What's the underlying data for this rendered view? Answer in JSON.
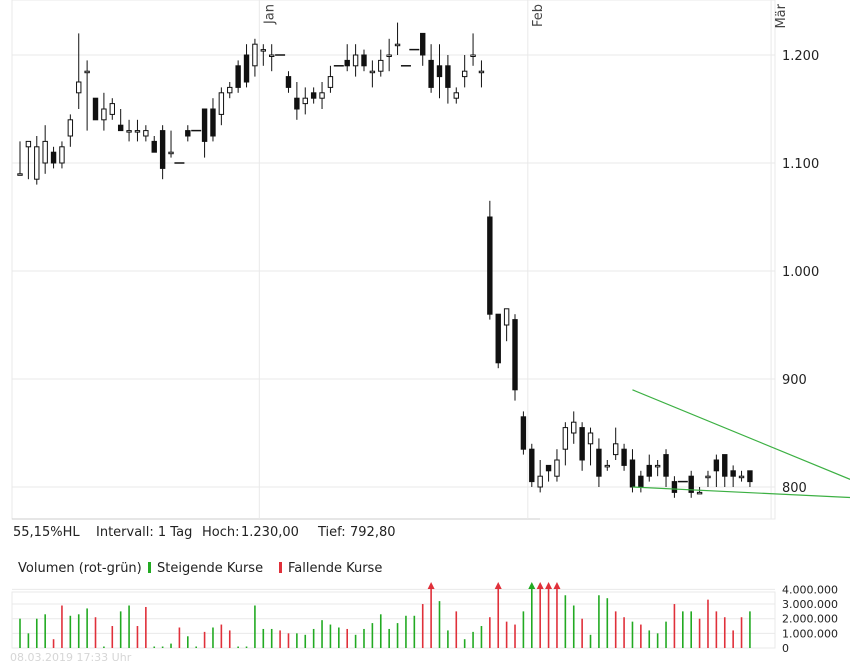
{
  "chart_data": [
    {
      "type": "candlestick",
      "x_labels": [
        {
          "label": "Jan",
          "index": 29
        },
        {
          "label": "Feb",
          "index": 61
        },
        {
          "label": "Mär",
          "index": 90
        }
      ],
      "y_ticks": [
        {
          "value": 800,
          "label": "800"
        },
        {
          "value": 900,
          "label": "900"
        },
        {
          "value": 1000,
          "label": "1.000"
        },
        {
          "value": 1100,
          "label": "1.100"
        },
        {
          "value": 1200,
          "label": "1.200"
        }
      ],
      "ylim": [
        780,
        1265
      ],
      "candles": [
        [
          1090,
          1090,
          1120,
          1090
        ],
        [
          1115,
          1120,
          1120,
          1085
        ],
        [
          1085,
          1115,
          1125,
          1080
        ],
        [
          1100,
          1120,
          1135,
          1090
        ],
        [
          1110,
          1100,
          1115,
          1095
        ],
        [
          1100,
          1115,
          1120,
          1095
        ],
        [
          1125,
          1140,
          1145,
          1115
        ],
        [
          1165,
          1175,
          1220,
          1150
        ],
        [
          1185,
          1185,
          1195,
          1130
        ],
        [
          1160,
          1140,
          1160,
          1140
        ],
        [
          1140,
          1150,
          1165,
          1130
        ],
        [
          1145,
          1155,
          1160,
          1140
        ],
        [
          1135,
          1130,
          1150,
          1130
        ],
        [
          1130,
          1130,
          1140,
          1120
        ],
        [
          1130,
          1130,
          1140,
          1120
        ],
        [
          1125,
          1130,
          1135,
          1120
        ],
        [
          1120,
          1110,
          1125,
          1110
        ],
        [
          1130,
          1095,
          1135,
          1085
        ],
        [
          1110,
          1110,
          1130,
          1105
        ],
        [
          1100,
          1100,
          1100,
          1100
        ],
        [
          1130,
          1125,
          1135,
          1120
        ],
        [
          1130,
          1130,
          1130,
          1130
        ],
        [
          1150,
          1120,
          1150,
          1105
        ],
        [
          1150,
          1125,
          1160,
          1120
        ],
        [
          1145,
          1165,
          1170,
          1135
        ],
        [
          1165,
          1170,
          1175,
          1160
        ],
        [
          1190,
          1170,
          1195,
          1165
        ],
        [
          1200,
          1175,
          1210,
          1170
        ],
        [
          1190,
          1210,
          1215,
          1180
        ],
        [
          1205,
          1205,
          1210,
          1190
        ],
        [
          1200,
          1200,
          1210,
          1185
        ],
        [
          1200,
          1200,
          1200,
          1200
        ],
        [
          1180,
          1170,
          1185,
          1165
        ],
        [
          1160,
          1150,
          1175,
          1140
        ],
        [
          1155,
          1160,
          1170,
          1145
        ],
        [
          1165,
          1160,
          1170,
          1155
        ],
        [
          1160,
          1165,
          1175,
          1150
        ],
        [
          1170,
          1180,
          1190,
          1165
        ],
        [
          1190,
          1190,
          1190,
          1190
        ],
        [
          1195,
          1190,
          1210,
          1185
        ],
        [
          1190,
          1200,
          1210,
          1180
        ],
        [
          1200,
          1190,
          1205,
          1185
        ],
        [
          1185,
          1185,
          1195,
          1170
        ],
        [
          1185,
          1195,
          1205,
          1180
        ],
        [
          1200,
          1200,
          1215,
          1185
        ],
        [
          1210,
          1210,
          1230,
          1200
        ],
        [
          1190,
          1190,
          1190,
          1190
        ],
        [
          1205,
          1205,
          1205,
          1205
        ],
        [
          1220,
          1200,
          1220,
          1190
        ],
        [
          1195,
          1170,
          1210,
          1165
        ],
        [
          1190,
          1180,
          1210,
          1160
        ],
        [
          1190,
          1170,
          1200,
          1155
        ],
        [
          1160,
          1165,
          1170,
          1155
        ],
        [
          1180,
          1185,
          1200,
          1170
        ],
        [
          1200,
          1200,
          1220,
          1190
        ],
        [
          1185,
          1185,
          1195,
          1170
        ],
        [
          1050,
          960,
          1065,
          955
        ],
        [
          960,
          915,
          960,
          910
        ],
        [
          950,
          965,
          965,
          935
        ],
        [
          955,
          890,
          960,
          880
        ],
        [
          865,
          835,
          870,
          830
        ],
        [
          835,
          805,
          840,
          800
        ],
        [
          800,
          810,
          825,
          795
        ],
        [
          820,
          815,
          820,
          805
        ],
        [
          810,
          825,
          835,
          805
        ],
        [
          835,
          855,
          860,
          820
        ],
        [
          850,
          860,
          870,
          840
        ],
        [
          855,
          825,
          860,
          815
        ],
        [
          840,
          850,
          855,
          820
        ],
        [
          835,
          810,
          845,
          800
        ],
        [
          820,
          820,
          825,
          815
        ],
        [
          830,
          840,
          855,
          825
        ],
        [
          835,
          820,
          840,
          815
        ],
        [
          825,
          800,
          835,
          795
        ],
        [
          810,
          800,
          815,
          795
        ],
        [
          820,
          810,
          830,
          805
        ],
        [
          820,
          820,
          825,
          810
        ],
        [
          830,
          810,
          835,
          800
        ],
        [
          805,
          795,
          810,
          790
        ],
        [
          805,
          805,
          805,
          805
        ],
        [
          810,
          795,
          815,
          790
        ],
        [
          795,
          795,
          800,
          795
        ],
        [
          810,
          810,
          815,
          800
        ],
        [
          825,
          815,
          830,
          800
        ],
        [
          830,
          810,
          830,
          800
        ],
        [
          815,
          810,
          820,
          800
        ],
        [
          810,
          810,
          815,
          805
        ],
        [
          815,
          805,
          815,
          800
        ]
      ],
      "trend_lines": [
        {
          "name": "resistance",
          "start": [
            73,
            890
          ],
          "end": [
            103,
            788
          ],
          "color": "#3cb043"
        },
        {
          "name": "support",
          "start": [
            73,
            800
          ],
          "end": [
            103,
            788
          ],
          "color": "#3cb043"
        }
      ]
    },
    {
      "type": "bar",
      "title": "Volumen (rot-grün)",
      "legend": [
        {
          "name": "Steigende Kurse",
          "color": "#22aa22"
        },
        {
          "name": "Fallende Kurse",
          "color": "#e0303a"
        }
      ],
      "y_ticks": [
        {
          "value": 0,
          "label": "0"
        },
        {
          "value": 1000000,
          "label": "1.000.000"
        },
        {
          "value": 2000000,
          "label": "2.000.000"
        },
        {
          "value": 3000000,
          "label": "3.000.000"
        },
        {
          "value": 4000000,
          "label": "4.000.000"
        }
      ],
      "ylim": [
        0,
        4300000
      ],
      "bars": [
        [
          2000000,
          "up"
        ],
        [
          1000000,
          "up"
        ],
        [
          2000000,
          "up"
        ],
        [
          2300000,
          "up"
        ],
        [
          600000,
          "down"
        ],
        [
          2900000,
          "down"
        ],
        [
          2200000,
          "up"
        ],
        [
          2300000,
          "up"
        ],
        [
          2700000,
          "up"
        ],
        [
          2100000,
          "down"
        ],
        [
          100000,
          "up"
        ],
        [
          1500000,
          "down"
        ],
        [
          2500000,
          "up"
        ],
        [
          2900000,
          "up"
        ],
        [
          1500000,
          "down"
        ],
        [
          2800000,
          "down"
        ],
        [
          100000,
          "up"
        ],
        [
          100000,
          "up"
        ],
        [
          300000,
          "up"
        ],
        [
          1400000,
          "down"
        ],
        [
          800000,
          "up"
        ],
        [
          100000,
          "up"
        ],
        [
          1100000,
          "down"
        ],
        [
          1400000,
          "up"
        ],
        [
          1600000,
          "down"
        ],
        [
          1200000,
          "down"
        ],
        [
          100000,
          "up"
        ],
        [
          100000,
          "up"
        ],
        [
          2900000,
          "up"
        ],
        [
          1300000,
          "up"
        ],
        [
          1300000,
          "up"
        ],
        [
          1200000,
          "down"
        ],
        [
          1000000,
          "down"
        ],
        [
          1000000,
          "up"
        ],
        [
          900000,
          "up"
        ],
        [
          1300000,
          "up"
        ],
        [
          1900000,
          "up"
        ],
        [
          1600000,
          "up"
        ],
        [
          1400000,
          "up"
        ],
        [
          1300000,
          "down"
        ],
        [
          900000,
          "up"
        ],
        [
          1300000,
          "up"
        ],
        [
          1700000,
          "up"
        ],
        [
          2300000,
          "up"
        ],
        [
          1300000,
          "up"
        ],
        [
          1700000,
          "up"
        ],
        [
          2200000,
          "up"
        ],
        [
          2200000,
          "up"
        ],
        [
          3000000,
          "down"
        ],
        [
          4300000,
          "down"
        ],
        [
          3200000,
          "up"
        ],
        [
          1200000,
          "up"
        ],
        [
          2500000,
          "down"
        ],
        [
          600000,
          "up"
        ],
        [
          1100000,
          "up"
        ],
        [
          1500000,
          "up"
        ],
        [
          2100000,
          "down"
        ],
        [
          4300000,
          "down"
        ],
        [
          1800000,
          "down"
        ],
        [
          1600000,
          "down"
        ],
        [
          2500000,
          "up"
        ],
        [
          4300000,
          "up"
        ],
        [
          4300000,
          "down"
        ],
        [
          4300000,
          "down"
        ],
        [
          4300000,
          "down"
        ],
        [
          3600000,
          "up"
        ],
        [
          2900000,
          "up"
        ],
        [
          2000000,
          "down"
        ],
        [
          900000,
          "up"
        ],
        [
          3600000,
          "up"
        ],
        [
          3400000,
          "up"
        ],
        [
          2500000,
          "down"
        ],
        [
          2100000,
          "down"
        ],
        [
          1800000,
          "up"
        ],
        [
          1600000,
          "down"
        ],
        [
          1200000,
          "up"
        ],
        [
          1000000,
          "up"
        ],
        [
          1800000,
          "up"
        ],
        [
          3000000,
          "down"
        ],
        [
          2500000,
          "up"
        ],
        [
          2500000,
          "up"
        ],
        [
          2000000,
          "down"
        ],
        [
          3300000,
          "down"
        ],
        [
          2500000,
          "down"
        ],
        [
          2100000,
          "down"
        ],
        [
          1200000,
          "down"
        ],
        [
          2100000,
          "down"
        ],
        [
          2500000,
          "up"
        ]
      ]
    }
  ],
  "info_bar": {
    "hl": "55,15%HL",
    "interval": "Intervall: 1 Tag",
    "high_label": "Hoch:",
    "high_value": "1.230,00",
    "low_label": "Tief:",
    "low_value": "792,80"
  },
  "volume_header": {
    "title": "Volumen (rot-grün)",
    "up_label": "Steigende Kurse",
    "down_label": "Fallende Kurse"
  },
  "timestamp": "08.03.2019 17:33 Uhr",
  "colors": {
    "up": "#22aa22",
    "down": "#e0303a",
    "candle": "#111111",
    "trend": "#3cb043",
    "grid": "#e9e9e9",
    "frame": "#cccccc"
  }
}
